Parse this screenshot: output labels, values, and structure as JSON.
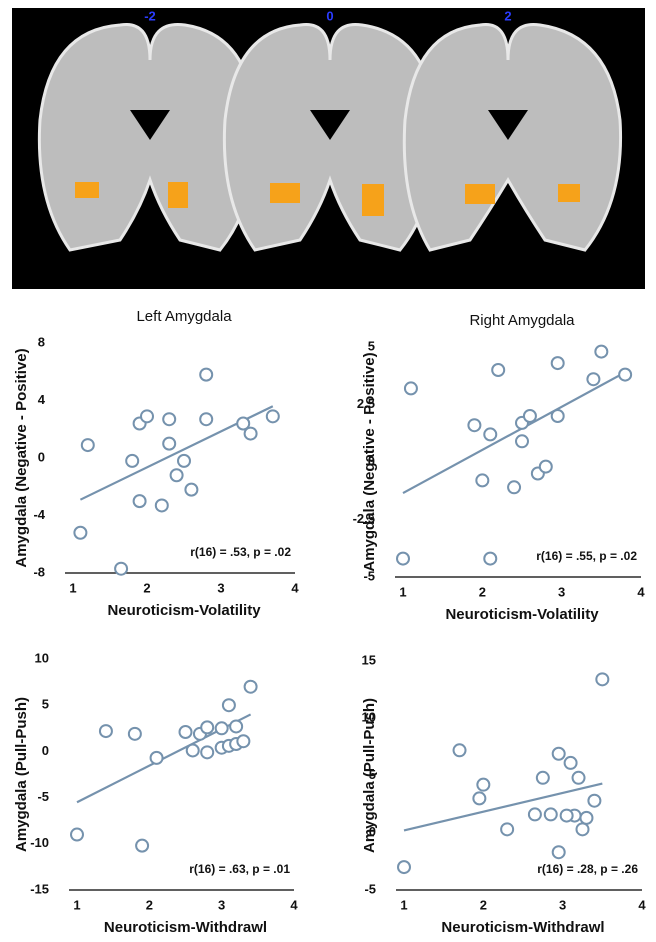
{
  "figure": {
    "slice_labels": [
      "-2",
      "0",
      "2"
    ]
  },
  "chart_data": [
    {
      "type": "scatter",
      "title": "Left Amygdala",
      "x_label": "Neuroticism-Volatility",
      "y_label": "Amygdala (Negative - Positive)",
      "x": [
        1.1,
        1.2,
        1.8,
        1.9,
        2.0,
        1.9,
        1.65,
        2.2,
        2.3,
        2.3,
        2.4,
        2.5,
        2.6,
        2.8,
        2.8,
        3.3,
        3.4,
        3.7
      ],
      "y": [
        -5.2,
        0.9,
        -0.2,
        2.4,
        2.9,
        -3.0,
        -7.7,
        -3.3,
        2.7,
        1.0,
        -1.2,
        -0.2,
        -2.2,
        5.8,
        2.7,
        2.4,
        1.7,
        2.9
      ],
      "fit": {
        "x": [
          1.1,
          3.7
        ],
        "y": [
          -2.9,
          3.6
        ]
      },
      "annotation": "r(16) = .53, p = .02",
      "color": "#7592ad",
      "xlim": [
        1,
        4
      ],
      "ylim": [
        -8,
        8
      ],
      "xticks": [
        1,
        2,
        3,
        4
      ],
      "yticks": [
        8,
        4,
        0,
        -4,
        -8
      ]
    },
    {
      "type": "scatter",
      "title": "Right Amygdala",
      "x_label": "Neuroticism-Volatility",
      "y_label": "Amygdala (Negative - Positive)",
      "x": [
        1.0,
        1.1,
        1.9,
        2.0,
        2.1,
        2.2,
        2.1,
        2.4,
        2.5,
        2.5,
        2.6,
        2.7,
        2.8,
        2.95,
        2.95,
        3.4,
        3.5,
        3.8
      ],
      "y": [
        -4.2,
        3.2,
        1.6,
        -0.8,
        1.2,
        4.0,
        -4.2,
        -1.1,
        1.7,
        0.9,
        2.0,
        -0.5,
        -0.2,
        4.3,
        2.0,
        3.6,
        4.8,
        3.8
      ],
      "fit": {
        "x": [
          1.0,
          3.8
        ],
        "y": [
          -1.35,
          3.9
        ]
      },
      "annotation": "r(16) = .55, p = .02",
      "color": "#7592ad",
      "xlim": [
        1,
        4
      ],
      "ylim": [
        -5,
        5
      ],
      "xticks": [
        1,
        2,
        3,
        4
      ],
      "yticks": [
        5,
        2.5,
        0,
        -2.5,
        -5
      ]
    },
    {
      "type": "scatter",
      "x_label": "Neuroticism-Withdrawl",
      "y_label": "Amygdala (Pull-Push)",
      "x": [
        1.0,
        1.4,
        1.8,
        1.9,
        2.1,
        2.5,
        2.6,
        2.7,
        2.8,
        2.8,
        3.0,
        3.0,
        3.1,
        3.1,
        3.2,
        3.2,
        3.3,
        3.4
      ],
      "y": [
        -9,
        2.2,
        1.9,
        -10.2,
        -0.7,
        2.1,
        0.1,
        1.9,
        2.6,
        -0.1,
        2.5,
        0.4,
        0.6,
        5.0,
        2.7,
        0.8,
        1.1,
        7
      ],
      "fit": {
        "x": [
          1.0,
          3.4
        ],
        "y": [
          -5.5,
          4.0
        ]
      },
      "annotation": "r(16) = .63, p = .01",
      "color": "#7592ad",
      "xlim": [
        1,
        4
      ],
      "ylim": [
        -15,
        10
      ],
      "xticks": [
        1,
        2,
        3,
        4
      ],
      "yticks": [
        10,
        5,
        0,
        -5,
        -10,
        -15
      ]
    },
    {
      "type": "scatter",
      "x_label": "Neuroticism-Withdrawl",
      "y_label": "Amygdala (Pull-Push)",
      "x": [
        1.0,
        1.7,
        2.0,
        1.95,
        2.3,
        2.65,
        2.75,
        2.85,
        2.95,
        2.95,
        3.1,
        3.15,
        3.2,
        3.25,
        3.3,
        3.4,
        3.5,
        3.05
      ],
      "y": [
        -3,
        7.2,
        4.2,
        3.0,
        0.3,
        1.6,
        4.8,
        1.6,
        6.9,
        -1.7,
        6.1,
        1.5,
        4.8,
        0.3,
        1.3,
        2.8,
        13.4,
        1.5
      ],
      "fit": {
        "x": [
          1.0,
          3.5
        ],
        "y": [
          0.2,
          4.3
        ]
      },
      "annotation": "r(16) = .28, p = .26",
      "color": "#7592ad",
      "xlim": [
        1,
        4
      ],
      "ylim": [
        -5,
        15
      ],
      "xticks": [
        1,
        2,
        3,
        4
      ],
      "yticks": [
        15,
        10,
        5,
        0,
        -5
      ]
    }
  ]
}
